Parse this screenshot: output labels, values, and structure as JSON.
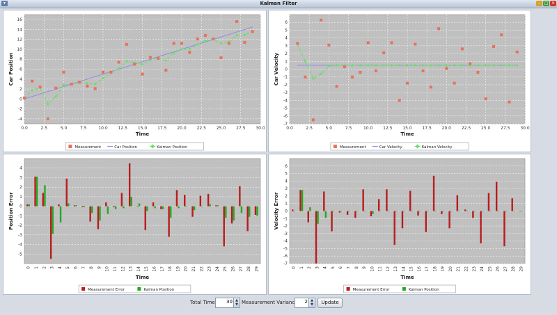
{
  "window": {
    "title": "Kalman Filter"
  },
  "controls": {
    "total_time_label": "Total Time",
    "total_time_value": "30",
    "variance_label": "Measurement Variance",
    "variance_value": "2",
    "update_label": "Update"
  },
  "colors": {
    "measurement": "#e8705a",
    "truth": "#8c8ce8",
    "kalman": "#66e066",
    "meas_err": "#b81c1c",
    "kalman_err": "#22aa22",
    "plot_bg": "#c0c0c0"
  },
  "chart_data": [
    {
      "type": "scatter",
      "xlabel": "Time",
      "ylabel": "Car Position",
      "xlim": [
        0,
        30
      ],
      "ylim": [
        -5,
        17
      ],
      "xticks": [
        "0.0",
        "2.5",
        "5.0",
        "7.5",
        "10.0",
        "12.5",
        "15.0",
        "17.5",
        "20.0",
        "22.5",
        "25.0",
        "27.5",
        "30.0"
      ],
      "yticks": [
        "-4",
        "-2",
        "0",
        "2",
        "4",
        "6",
        "8",
        "10",
        "12",
        "14",
        "16"
      ],
      "legend": [
        "Measurement",
        "Car Position",
        "Kalman Position"
      ],
      "x": [
        0,
        1,
        2,
        3,
        4,
        5,
        6,
        7,
        8,
        9,
        10,
        11,
        12,
        13,
        14,
        15,
        16,
        17,
        18,
        19,
        20,
        21,
        22,
        23,
        24,
        25,
        26,
        27,
        28,
        29
      ],
      "measurement": [
        0.2,
        3.6,
        2.4,
        -4.0,
        2.2,
        5.4,
        3.0,
        3.4,
        2.6,
        2.1,
        5.4,
        5.4,
        7.4,
        11.0,
        7.0,
        5.0,
        8.4,
        8.2,
        5.8,
        11.2,
        11.2,
        9.4,
        12.1,
        12.8,
        12.1,
        8.3,
        11.2,
        15.6,
        11.4,
        13.6
      ],
      "truth": [
        0,
        0.5,
        1.0,
        1.5,
        2.0,
        2.5,
        3.0,
        3.5,
        4.0,
        4.5,
        5.0,
        5.5,
        6.0,
        6.5,
        7.0,
        7.5,
        8.0,
        8.5,
        9.0,
        9.5,
        10.0,
        10.5,
        11.0,
        11.5,
        12.0,
        12.5,
        13.0,
        13.5,
        14.0,
        14.5
      ],
      "kalman": [
        0.2,
        1.8,
        2.2,
        -1.0,
        0.5,
        2.8,
        3.0,
        3.3,
        3.2,
        3.0,
        4.2,
        5.2,
        6.2,
        7.6,
        7.3,
        7.0,
        7.8,
        8.2,
        7.8,
        9.3,
        10.0,
        10.1,
        11.0,
        11.7,
        12.0,
        11.2,
        11.5,
        12.8,
        12.9,
        13.5
      ]
    },
    {
      "type": "scatter",
      "xlabel": "Time",
      "ylabel": "Car Velocity",
      "xlim": [
        0,
        30
      ],
      "ylim": [
        -7,
        7
      ],
      "xticks": [
        "0.0",
        "2.5",
        "5.0",
        "7.5",
        "10.0",
        "12.5",
        "15.0",
        "17.5",
        "20.0",
        "22.5",
        "25.0",
        "27.5",
        "30.0"
      ],
      "yticks": [
        "-7",
        "-6",
        "-5",
        "-4",
        "-3",
        "-2",
        "-1",
        "0",
        "1",
        "2",
        "3",
        "4",
        "5",
        "6"
      ],
      "legend": [
        "Measurement",
        "Car Velocity",
        "Kalman Velocity"
      ],
      "x": [
        1,
        2,
        3,
        4,
        5,
        6,
        7,
        8,
        9,
        10,
        11,
        12,
        13,
        14,
        15,
        16,
        17,
        18,
        19,
        20,
        21,
        22,
        23,
        24,
        25,
        26,
        27,
        28,
        29
      ],
      "measurement": [
        3.3,
        -1.0,
        -6.5,
        6.3,
        3.1,
        -2.2,
        0.3,
        -1.0,
        -0.4,
        3.4,
        -0.2,
        2.1,
        3.4,
        -4.0,
        -1.8,
        3.2,
        -0.2,
        -2.3,
        5.2,
        0.1,
        -1.8,
        2.6,
        0.7,
        -0.4,
        -3.8,
        2.9,
        4.4,
        -4.2,
        2.2
      ],
      "truth": [
        0.5,
        0.5,
        0.5,
        0.5,
        0.5,
        0.5,
        0.5,
        0.5,
        0.5,
        0.5,
        0.5,
        0.5,
        0.5,
        0.5,
        0.5,
        0.5,
        0.5,
        0.5,
        0.5,
        0.5,
        0.5,
        0.5,
        0.5,
        0.5,
        0.5,
        0.5,
        0.5,
        0.5,
        0.5
      ],
      "kalman": [
        3.2,
        1.0,
        -1.2,
        -0.6,
        0.4,
        0.5,
        0.5,
        0.5,
        0.5,
        0.5,
        0.5,
        0.5,
        0.5,
        0.5,
        0.5,
        0.5,
        0.5,
        0.5,
        0.5,
        0.5,
        0.5,
        0.5,
        0.5,
        0.5,
        0.5,
        0.5,
        0.5,
        0.5,
        0.5
      ]
    },
    {
      "type": "bar",
      "xlabel": "Time",
      "ylabel": "Position Error",
      "ylim": [
        -6,
        5
      ],
      "yticks": [
        "-5",
        "-4",
        "-3",
        "-2",
        "-1",
        "0",
        "1",
        "2",
        "3",
        "4"
      ],
      "legend": [
        "Measurement Error",
        "Kalman Position"
      ],
      "categories": [
        "0",
        "1",
        "2",
        "3",
        "4",
        "5",
        "6",
        "7",
        "8",
        "9",
        "10",
        "11",
        "12",
        "13",
        "14",
        "15",
        "16",
        "17",
        "18",
        "19",
        "20",
        "21",
        "22",
        "23",
        "24",
        "25",
        "26",
        "27",
        "28",
        "29"
      ],
      "series": [
        {
          "name": "Measurement Error",
          "values": [
            0.2,
            3.1,
            1.4,
            -5.5,
            0.2,
            2.9,
            0.1,
            -0.1,
            -1.6,
            -2.4,
            0.4,
            -0.1,
            1.4,
            4.5,
            0.0,
            -2.5,
            0.4,
            -0.3,
            -3.2,
            1.7,
            1.2,
            -1.1,
            1.1,
            1.3,
            0.1,
            -4.2,
            -1.8,
            2.1,
            -2.6,
            -0.9
          ]
        },
        {
          "name": "Kalman Position",
          "values": [
            0.2,
            3.1,
            2.2,
            -2.9,
            -1.7,
            0.3,
            0.1,
            -0.1,
            -0.7,
            -1.5,
            -0.8,
            -0.3,
            -0.2,
            1.0,
            0.3,
            -0.5,
            -0.2,
            -0.3,
            -1.2,
            -0.2,
            0.0,
            -0.4,
            0.0,
            0.2,
            0.1,
            -1.2,
            -1.5,
            -0.7,
            -1.1,
            -1.0
          ]
        }
      ]
    },
    {
      "type": "bar",
      "xlabel": "Time",
      "ylabel": "Velocity Error",
      "ylim": [
        -7,
        7
      ],
      "yticks": [
        "-7",
        "-6",
        "-5",
        "-4",
        "-3",
        "-2",
        "-1",
        "0",
        "1",
        "2",
        "3",
        "4",
        "5",
        "6"
      ],
      "legend": [
        "Measurement Error",
        "Kalman Position"
      ],
      "categories": [
        "0",
        "1",
        "2",
        "3",
        "4",
        "5",
        "6",
        "7",
        "8",
        "9",
        "10",
        "11",
        "12",
        "13",
        "14",
        "15",
        "16",
        "17",
        "18",
        "19",
        "20",
        "21",
        "22",
        "23",
        "24",
        "25",
        "26",
        "27",
        "28",
        "29"
      ],
      "series": [
        {
          "name": "Measurement Error",
          "values": [
            0.2,
            2.8,
            -1.5,
            -7.0,
            2.6,
            -2.7,
            -0.2,
            -0.5,
            -0.9,
            2.9,
            -0.7,
            1.6,
            2.9,
            -4.5,
            -2.3,
            2.7,
            -0.6,
            -2.8,
            4.7,
            -0.4,
            -2.3,
            2.1,
            0.2,
            -0.9,
            -4.3,
            2.4,
            3.9,
            -4.7,
            1.7,
            0.0
          ]
        },
        {
          "name": "Kalman Position",
          "values": [
            0.0,
            2.8,
            0.5,
            -1.7,
            -0.9,
            0.0,
            0.0,
            0.0,
            0.0,
            0.0,
            -0.4,
            0.0,
            0.0,
            0.0,
            0.0,
            0.0,
            0.0,
            0.0,
            0.0,
            0.0,
            0.0,
            0.0,
            0.0,
            0.0,
            0.0,
            0.0,
            0.0,
            0.0,
            0.0,
            0.0
          ]
        }
      ]
    }
  ]
}
